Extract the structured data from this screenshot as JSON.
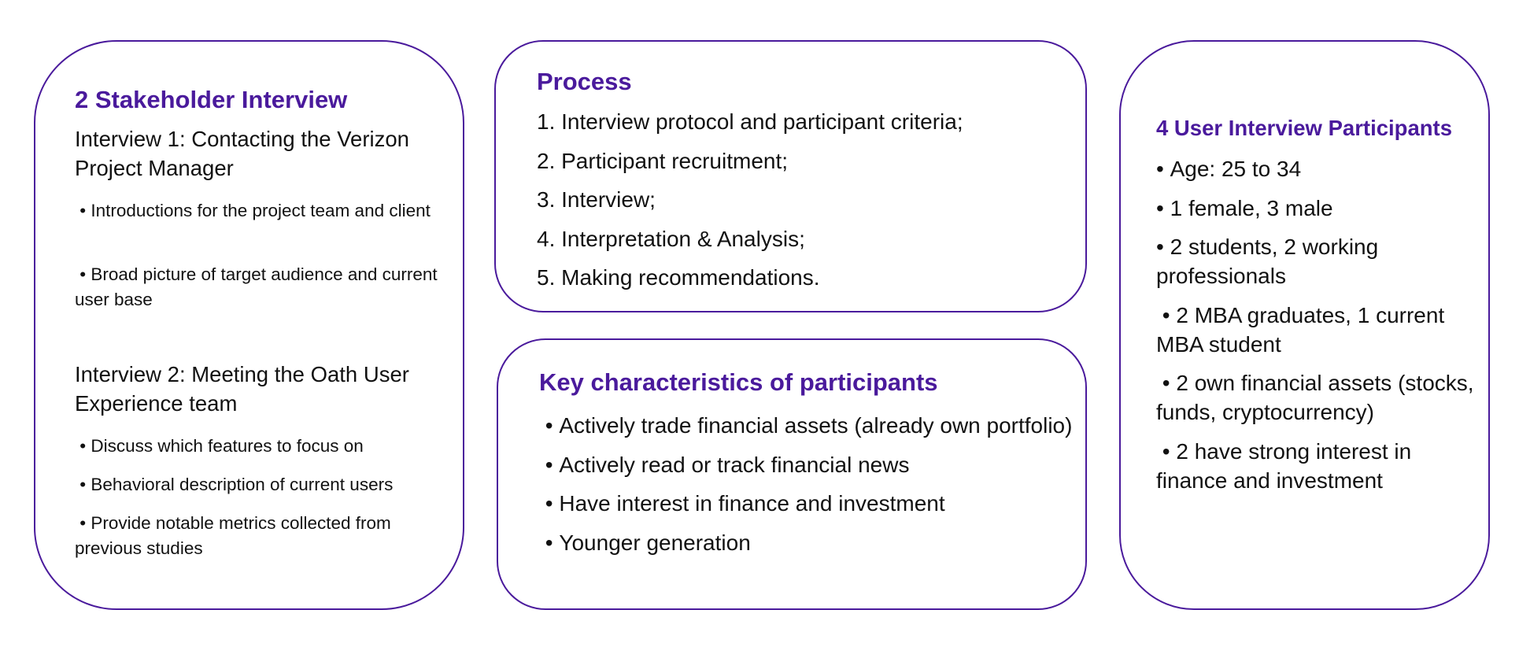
{
  "stakeholder": {
    "title": "2 Stakeholder Interview",
    "interview1": {
      "heading": "Interview 1: Contacting the Verizon Project Manager",
      "bullets": [
        "Introductions for the project team and client",
        "Broad picture of target audience and current user base"
      ]
    },
    "interview2": {
      "heading": "Interview 2: Meeting the Oath User Experience team",
      "bullets": [
        "Discuss which features to focus on",
        "Behavioral description of current users",
        "Provide notable metrics collected from previous studies"
      ]
    }
  },
  "process": {
    "title": "Process",
    "steps": [
      "1. Interview protocol and participant criteria;",
      "2. Participant recruitment;",
      "3. Interview;",
      "4. Interpretation & Analysis;",
      "5. Making recommendations."
    ]
  },
  "characteristics": {
    "title": "Key characteristics of participants",
    "items": [
      "Actively trade financial assets (already own portfolio)",
      "Actively read or track financial news",
      "Have interest in finance and investment",
      "Younger generation"
    ]
  },
  "participants": {
    "title": "4 User Interview Participants",
    "items": [
      "Age: 25 to 34",
      "1 female, 3 male",
      "2 students, 2 working professionals",
      "2 MBA graduates, 1 current MBA student",
      "2 own financial assets (stocks, funds, cryptocurrency)",
      "2 have strong interest in finance and investment"
    ]
  },
  "colors": {
    "accent": "#4a1a9c",
    "text": "#111111",
    "background": "#ffffff"
  }
}
